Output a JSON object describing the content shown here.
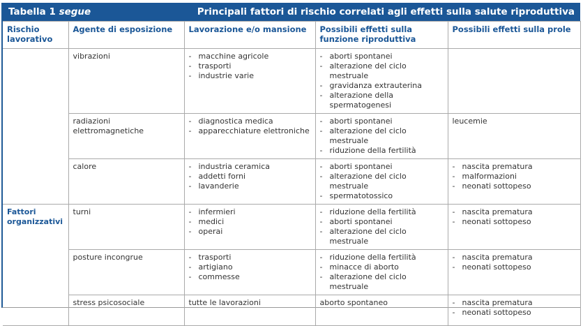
{
  "header": {
    "title_prefix": "Tabella 1",
    "title_suffix": "segue",
    "subtitle": "Principali fattori di rischio correlati agli effetti sulla salute riproduttiva",
    "accent": "#1b5797"
  },
  "columns": [
    "Rischio lavorativo",
    "Agente di esposizione",
    "Lavorazione e/o mansione",
    "Possibili effetti sulla funzione riproduttiva",
    "Possibili effetti sulla prole"
  ],
  "rows": [
    {
      "risk": "",
      "agent": "vibrazioni",
      "work": [
        "macchine agricole",
        "trasporti",
        "industrie varie"
      ],
      "repro": [
        "aborti spontanei",
        "alterazione del ciclo mestruale",
        "gravidanza extrauterina",
        "alterazione della spermatogenesi"
      ],
      "offspring": []
    },
    {
      "risk": "",
      "agent": "radiazioni elettromagnetiche",
      "work": [
        "diagnostica medica",
        "apparecchiature elettroniche"
      ],
      "repro": [
        "aborti spontanei",
        "alterazione del ciclo mestruale",
        "riduzione della fertilità"
      ],
      "offspring_text": "leucemie",
      "offspring": []
    },
    {
      "risk": "",
      "agent": "calore",
      "work": [
        "industria ceramica",
        "addetti forni",
        "lavanderie"
      ],
      "repro": [
        "aborti spontanei",
        "alterazione del ciclo mestruale",
        "spermatotossico"
      ],
      "offspring": [
        "nascita prematura",
        "malformazioni",
        "neonati sottopeso"
      ]
    },
    {
      "risk": "Fattori organizzativi",
      "agent": "turni",
      "work": [
        "infermieri",
        "medici",
        "operai"
      ],
      "repro": [
        "riduzione della fertilità",
        "aborti spontanei",
        "alterazione del ciclo mestruale"
      ],
      "offspring": [
        "nascita prematura",
        "neonati sottopeso"
      ]
    },
    {
      "risk": "",
      "agent": "posture incongrue",
      "work": [
        "trasporti",
        "artigiano",
        "commesse"
      ],
      "repro": [
        "riduzione della fertilità",
        "minacce di aborto",
        "alterazione del ciclo mestruale"
      ],
      "offspring": [
        "nascita prematura",
        "neonati sottopeso"
      ]
    },
    {
      "risk": "",
      "agent": "stress psicosociale",
      "work_text": "tutte le lavorazioni",
      "work": [],
      "repro_text": "aborto spontaneo",
      "repro": [],
      "offspring": [
        "nascita prematura",
        "neonati sottopeso"
      ]
    }
  ]
}
